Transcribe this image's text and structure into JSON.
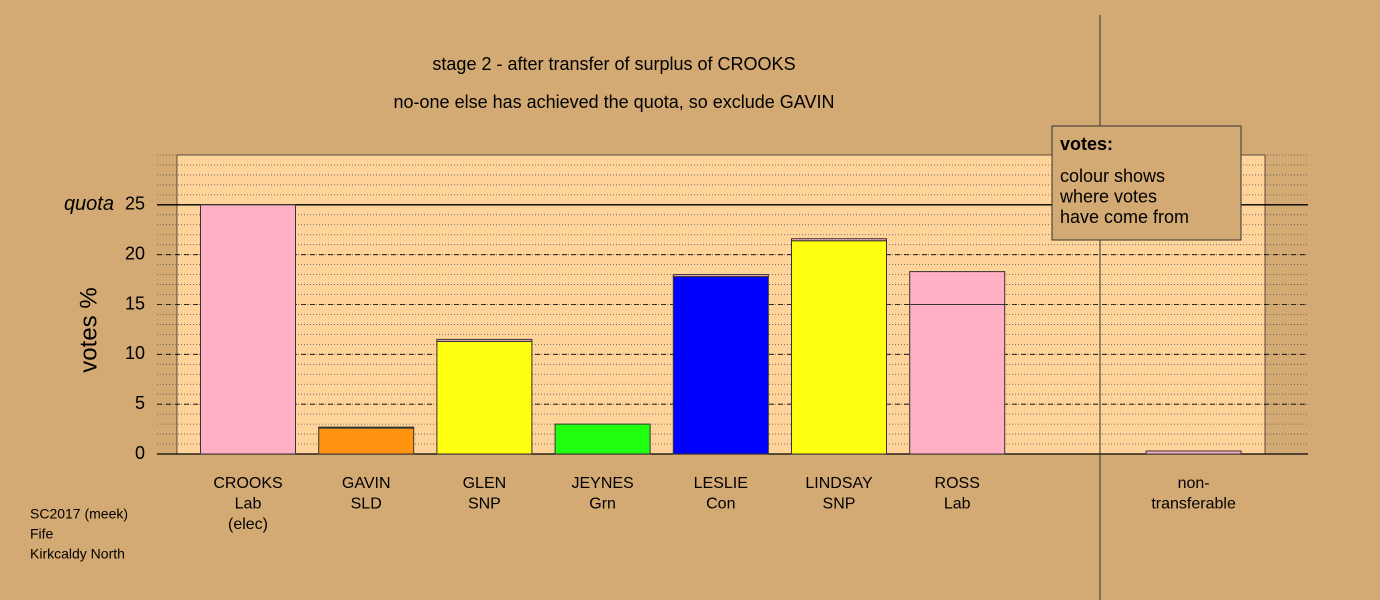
{
  "chart_data": {
    "type": "stacked_bar",
    "title": "stage 2 - after transfer of surplus of CROOKS",
    "subtitle": "no-one else has achieved the quota, so exclude GAVIN",
    "y_label": "votes %",
    "quota": 25,
    "quota_label": "quota",
    "categories": [
      [
        "CROOKS",
        "Lab",
        "(elec)"
      ],
      [
        "GAVIN",
        "SLD"
      ],
      [
        "GLEN",
        "SNP"
      ],
      [
        "JEYNES",
        "Grn"
      ],
      [
        "LESLIE",
        "Con"
      ],
      [
        "LINDSAY",
        "SNP"
      ],
      [
        "ROSS",
        "Lab"
      ],
      [
        "non-",
        "transferable"
      ]
    ],
    "series": [
      {
        "colors": [
          "#ffb0c4",
          "#ff9410",
          "#ffff10",
          "#20ff10",
          "#0000ff",
          "#ffff10",
          "#ffb0c4",
          "#ffb0c4"
        ],
        "values": [
          25,
          2.6,
          11.3,
          3.0,
          17.8,
          21.4,
          15.0,
          0
        ]
      },
      {
        "color": "#ffb0c4",
        "values": [
          0,
          0.1,
          0.2,
          0,
          0.2,
          0.2,
          3.3,
          0.3
        ]
      }
    ],
    "ylim": [
      0,
      30
    ],
    "yticks": [
      0,
      5,
      10,
      15,
      20,
      25
    ],
    "minor_grid_step": 1,
    "grid": true,
    "legend_title": "votes:",
    "legend_lines": [
      "colour shows",
      "where votes",
      "have come from"
    ],
    "footnote": [
      "SC2017 (meek)",
      "Fife",
      "Kirkcaldy North"
    ]
  }
}
